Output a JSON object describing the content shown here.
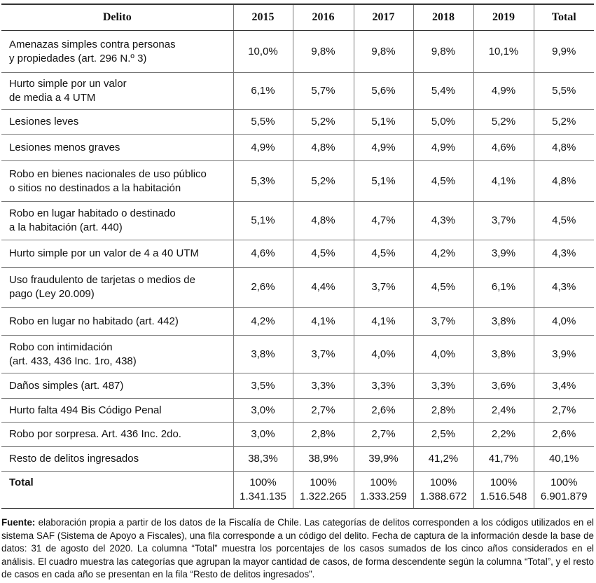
{
  "table": {
    "header": [
      "Delito",
      "2015",
      "2016",
      "2017",
      "2018",
      "2019",
      "Total"
    ],
    "rows": [
      {
        "label": [
          "Amenazas simples contra personas",
          "y propiedades (art. 296 N.º 3)"
        ],
        "values": [
          "10,0%",
          "9,8%",
          "9,8%",
          "9,8%",
          "10,1%",
          "9,9%"
        ]
      },
      {
        "label": [
          "Hurto simple por un valor",
          "de media a 4 UTM"
        ],
        "values": [
          "6,1%",
          "5,7%",
          "5,6%",
          "5,4%",
          "4,9%",
          "5,5%"
        ]
      },
      {
        "label": [
          "Lesiones leves"
        ],
        "values": [
          "5,5%",
          "5,2%",
          "5,1%",
          "5,0%",
          "5,2%",
          "5,2%"
        ]
      },
      {
        "label": [
          "Lesiones menos graves"
        ],
        "values": [
          "4,9%",
          "4,8%",
          "4,9%",
          "4,9%",
          "4,6%",
          "4,8%"
        ]
      },
      {
        "label": [
          "Robo en bienes nacionales de uso público",
          "o sitios no destinados a la habitación"
        ],
        "values": [
          "5,3%",
          "5,2%",
          "5,1%",
          "4,5%",
          "4,1%",
          "4,8%"
        ]
      },
      {
        "label": [
          "Robo en lugar habitado o destinado",
          "a la habitación (art. 440)"
        ],
        "values": [
          "5,1%",
          "4,8%",
          "4,7%",
          "4,3%",
          "3,7%",
          "4,5%"
        ]
      },
      {
        "label": [
          "Hurto simple por un valor de 4 a 40 UTM"
        ],
        "values": [
          "4,6%",
          "4,5%",
          "4,5%",
          "4,2%",
          "3,9%",
          "4,3%"
        ]
      },
      {
        "label": [
          "Uso fraudulento de tarjetas o medios de",
          "pago (Ley 20.009)"
        ],
        "values": [
          "2,6%",
          "4,4%",
          "3,7%",
          "4,5%",
          "6,1%",
          "4,3%"
        ]
      },
      {
        "label": [
          "Robo en lugar no habitado (art. 442)"
        ],
        "values": [
          "4,2%",
          "4,1%",
          "4,1%",
          "3,7%",
          "3,8%",
          "4,0%"
        ]
      },
      {
        "label": [
          "Robo con intimidación",
          "(art. 433, 436 Inc. 1ro, 438)"
        ],
        "values": [
          "3,8%",
          "3,7%",
          "4,0%",
          "4,0%",
          "3,8%",
          "3,9%"
        ]
      },
      {
        "label": [
          "Daños simples (art. 487)"
        ],
        "values": [
          "3,5%",
          "3,3%",
          "3,3%",
          "3,3%",
          "3,6%",
          "3,4%"
        ]
      },
      {
        "label": [
          "Hurto falta 494 Bis Código Penal"
        ],
        "values": [
          "3,0%",
          "2,7%",
          "2,6%",
          "2,8%",
          "2,4%",
          "2,7%"
        ]
      },
      {
        "label": [
          "Robo por sorpresa. Art. 436 Inc. 2do."
        ],
        "values": [
          "3,0%",
          "2,8%",
          "2,7%",
          "2,5%",
          "2,2%",
          "2,6%"
        ]
      },
      {
        "label": [
          "Resto de delitos ingresados"
        ],
        "values": [
          "38,3%",
          "38,9%",
          "39,9%",
          "41,2%",
          "41,7%",
          "40,1%"
        ]
      }
    ],
    "total": {
      "label": "Total",
      "percent": [
        "100%",
        "100%",
        "100%",
        "100%",
        "100%",
        "100%"
      ],
      "counts": [
        "1.341.135",
        "1.322.265",
        "1.333.259",
        "1.388.672",
        "1.516.548",
        "6.901.879"
      ]
    }
  },
  "source": {
    "label": "Fuente:",
    "text": "elaboración propia a partir de los datos de la Fiscalía de Chile. Las categorías de delitos corresponden a los códigos utilizados en el sistema SAF (Sistema de Apoyo a Fiscales), una fila corresponde a un código del delito. Fecha de captura de la información desde la base de datos: 31 de agosto del 2020. La columna “Total” muestra los porcentajes de los casos sumados de los cinco años considerados en el análisis. El cuadro muestra las categorías que agrupan la mayor cantidad de casos, de forma descendente según la columna “Total”, y el resto de casos en cada año se presentan en la fila “Resto de delitos ingresados”."
  }
}
